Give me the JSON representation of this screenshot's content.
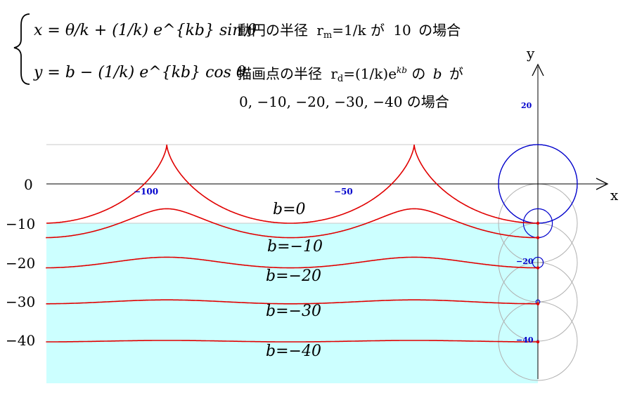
{
  "equations": {
    "x_eq": "x = θ/k + (1/k) e^{kb} sin θ",
    "y_eq": "y = b − (1/k) e^{kb} cos θ"
  },
  "notes": {
    "line1_text": "動円の半径",
    "line1_var": "r",
    "line1_sub": "m",
    "line1_suffix_pre": "が",
    "line1_value": "10",
    "line1_suffix": "の場合",
    "line2_text": "描画点の半径",
    "line2_var": "r",
    "line2_sub": "d",
    "line2_suffix_pre": "の",
    "line2_param": "b",
    "line2_suffix": "が",
    "line3": "0, −10, −20, −30, −40  の場合"
  },
  "chart_data": {
    "type": "line",
    "description_free": true,
    "xlabel": "x",
    "ylabel": "y",
    "x_ticks": [
      "−100",
      "−50"
    ],
    "y_ticks_left": [
      "0",
      "−10",
      "−20",
      "−30",
      "−40"
    ],
    "y_ticks_right": [
      "20",
      "−20",
      "−40"
    ],
    "k": 0.1,
    "rolling_radius": 10,
    "series": [
      {
        "name": "b=0",
        "b": 0,
        "label": "b=0"
      },
      {
        "name": "b=−10",
        "b": -10,
        "label": "b=−10"
      },
      {
        "name": "b=−20",
        "b": -20,
        "label": "b=−20"
      },
      {
        "name": "b=−30",
        "b": -30,
        "label": "b=−30"
      },
      {
        "name": "b=−40",
        "b": -40,
        "label": "b=−40"
      }
    ],
    "colors": {
      "curve": "#e00000",
      "fill": "#ccffff",
      "rolling_circle": "#0000cc",
      "trace_circle": "#b0b0b0",
      "axis": "#000000",
      "tick_label": "#0000cc"
    }
  }
}
